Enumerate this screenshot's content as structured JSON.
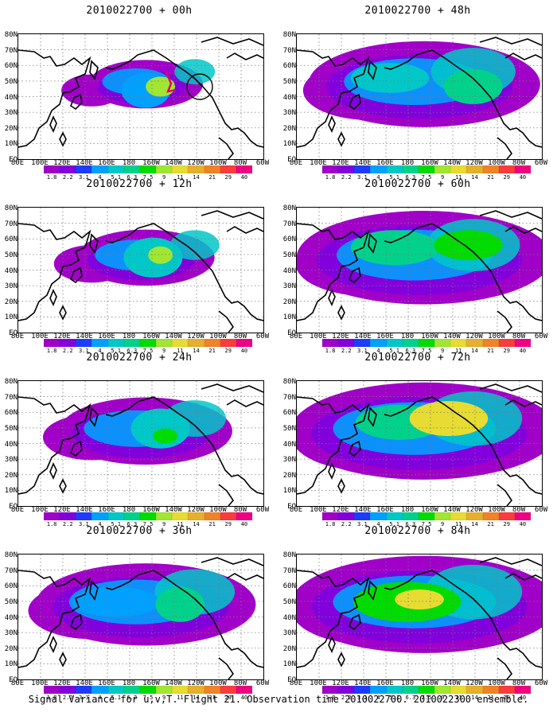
{
  "panels": [
    {
      "title": "2010022700 + 00h",
      "lead": "00h"
    },
    {
      "title": "2010022700 + 48h",
      "lead": "48h"
    },
    {
      "title": "2010022700 + 12h",
      "lead": "12h"
    },
    {
      "title": "2010022700 + 60h",
      "lead": "60h"
    },
    {
      "title": "2010022700 + 24h",
      "lead": "24h"
    },
    {
      "title": "2010022700 + 72h",
      "lead": "72h"
    },
    {
      "title": "2010022700 + 36h",
      "lead": "36h"
    },
    {
      "title": "2010022700 + 84h",
      "lead": "84h"
    }
  ],
  "lat_labels": [
    "80N",
    "70N",
    "60N",
    "50N",
    "40N",
    "30N",
    "20N",
    "10N",
    "EQ"
  ],
  "lon_labels": [
    "80E",
    "100E",
    "120E",
    "140E",
    "160E",
    "180",
    "160W",
    "140W",
    "120W",
    "100W",
    "80W",
    "60W"
  ],
  "colorbar": {
    "labels": [
      "1.8",
      "2.2",
      "3.1",
      "4",
      "5.1",
      "6.3",
      "7.5",
      "9",
      "11",
      "14",
      "21",
      "29",
      "40"
    ],
    "colors": [
      "#a000c8",
      "#8200dc",
      "#1e3cff",
      "#00a0ff",
      "#00c8c8",
      "#00d28c",
      "#00dc00",
      "#a0e632",
      "#e6dc32",
      "#e6af2d",
      "#f08228",
      "#fa3c3c",
      "#f00082"
    ]
  },
  "footer": "Signal Variance for u,v,T. Flight 21. Observation time 2010022700. 2010022300 ensemble."
}
